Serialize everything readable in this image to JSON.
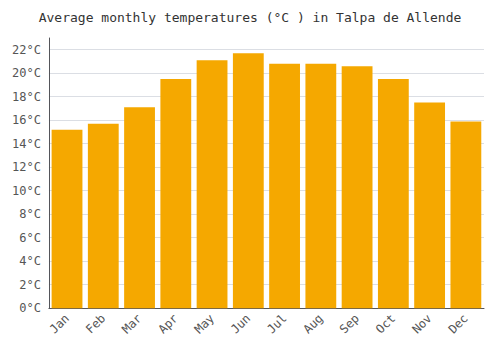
{
  "chart_data": {
    "type": "bar",
    "title": "Average monthly temperatures (°C ) in Talpa de Allende",
    "categories": [
      "Jan",
      "Feb",
      "Mar",
      "Apr",
      "May",
      "Jun",
      "Jul",
      "Aug",
      "Sep",
      "Oct",
      "Nov",
      "Dec"
    ],
    "values": [
      15.2,
      15.7,
      17.1,
      19.5,
      21.1,
      21.7,
      20.8,
      20.8,
      20.6,
      19.5,
      17.5,
      15.9
    ],
    "color": "#F5A800",
    "ylim": [
      0,
      23
    ],
    "yticks": [
      {
        "value": 0,
        "label": "0°C"
      },
      {
        "value": 2,
        "label": "2°C"
      },
      {
        "value": 4,
        "label": "4°C"
      },
      {
        "value": 6,
        "label": "6°C"
      },
      {
        "value": 8,
        "label": "8°C"
      },
      {
        "value": 10,
        "label": "10°C"
      },
      {
        "value": 12,
        "label": "12°C"
      },
      {
        "value": 14,
        "label": "14°C"
      },
      {
        "value": 16,
        "label": "16°C"
      },
      {
        "value": 18,
        "label": "18°C"
      },
      {
        "value": 20,
        "label": "20°C"
      },
      {
        "value": 22,
        "label": "22°C"
      }
    ],
    "grid": true
  }
}
